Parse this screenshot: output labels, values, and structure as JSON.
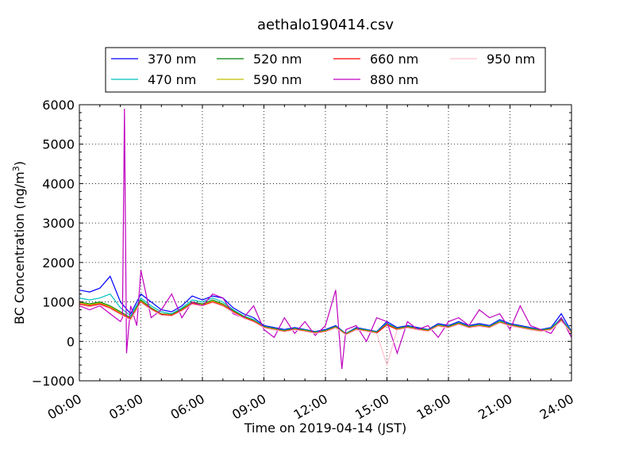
{
  "chart_data": {
    "type": "line",
    "title": "aethalo190414.csv",
    "xlabel": "Time on 2019-04-14 (JST)",
    "ylabel_main": "BC Concentration (ng/m",
    "ylabel_sup": "3",
    "ylabel_close": ")",
    "xlim_hours": [
      0,
      24
    ],
    "ylim": [
      -1000,
      6000
    ],
    "x_ticks": [
      0,
      3,
      6,
      9,
      12,
      15,
      18,
      21,
      24
    ],
    "x_tick_labels": [
      "00:00",
      "03:00",
      "06:00",
      "09:00",
      "12:00",
      "15:00",
      "18:00",
      "21:00",
      "24:00"
    ],
    "y_ticks": [
      -1000,
      0,
      1000,
      2000,
      3000,
      4000,
      5000,
      6000
    ],
    "y_tick_labels": [
      "−1000",
      "0",
      "1000",
      "2000",
      "3000",
      "4000",
      "5000",
      "6000"
    ],
    "grid": true,
    "legend_position": "top-center, above plot",
    "series": [
      {
        "name": "370 nm",
        "color": "#0000ff",
        "x": [
          0,
          0.5,
          1,
          1.5,
          2,
          2.5,
          3,
          3.5,
          4,
          4.5,
          5,
          5.5,
          6,
          6.5,
          7,
          7.5,
          8,
          8.5,
          9,
          9.5,
          10,
          10.5,
          11,
          11.5,
          12,
          12.5,
          13,
          13.5,
          14,
          14.5,
          15,
          15.5,
          16,
          16.5,
          17,
          17.5,
          18,
          18.5,
          19,
          19.5,
          20,
          20.5,
          21,
          21.5,
          22,
          22.5,
          23,
          23.5,
          24
        ],
        "y": [
          1300,
          1250,
          1350,
          1650,
          1000,
          700,
          1200,
          1000,
          800,
          750,
          900,
          1150,
          1050,
          1150,
          1100,
          850,
          700,
          600,
          400,
          350,
          300,
          350,
          300,
          250,
          300,
          400,
          200,
          350,
          300,
          250,
          500,
          350,
          400,
          350,
          300,
          450,
          400,
          500,
          400,
          450,
          400,
          550,
          450,
          400,
          350,
          300,
          350,
          700,
          250
        ]
      },
      {
        "name": "470 nm",
        "color": "#00bfbf",
        "x": [
          0,
          0.5,
          1,
          1.5,
          2,
          2.5,
          3,
          3.5,
          4,
          4.5,
          5,
          5.5,
          6,
          6.5,
          7,
          7.5,
          8,
          8.5,
          9,
          9.5,
          10,
          10.5,
          11,
          11.5,
          12,
          12.5,
          13,
          13.5,
          14,
          14.5,
          15,
          15.5,
          16,
          16.5,
          17,
          17.5,
          18,
          18.5,
          19,
          19.5,
          20,
          20.5,
          21,
          21.5,
          22,
          22.5,
          23,
          23.5,
          24
        ],
        "y": [
          1100,
          1050,
          1100,
          1200,
          850,
          650,
          1100,
          900,
          750,
          700,
          850,
          1050,
          1000,
          1100,
          1000,
          800,
          650,
          550,
          380,
          330,
          280,
          330,
          290,
          240,
          280,
          380,
          200,
          330,
          290,
          240,
          460,
          330,
          380,
          330,
          290,
          420,
          380,
          470,
          380,
          420,
          380,
          520,
          430,
          380,
          330,
          290,
          330,
          600,
          240
        ]
      },
      {
        "name": "520 nm",
        "color": "#008000",
        "x": [
          0,
          0.5,
          1,
          1.5,
          2,
          2.5,
          3,
          3.5,
          4,
          4.5,
          5,
          5.5,
          6,
          6.5,
          7,
          7.5,
          8,
          8.5,
          9,
          9.5,
          10,
          10.5,
          11,
          11.5,
          12,
          12.5,
          13,
          13.5,
          14,
          14.5,
          15,
          15.5,
          16,
          16.5,
          17,
          17.5,
          18,
          18.5,
          19,
          19.5,
          20,
          20.5,
          21,
          21.5,
          22,
          22.5,
          23,
          23.5,
          24
        ],
        "y": [
          1000,
          950,
          1000,
          900,
          750,
          600,
          1050,
          850,
          700,
          680,
          820,
          1000,
          950,
          1050,
          950,
          780,
          630,
          530,
          370,
          320,
          270,
          320,
          280,
          230,
          270,
          370,
          190,
          320,
          280,
          230,
          440,
          320,
          370,
          320,
          280,
          410,
          370,
          460,
          370,
          410,
          370,
          500,
          420,
          370,
          320,
          280,
          320,
          550,
          230
        ]
      },
      {
        "name": "590 nm",
        "color": "#bfbf00",
        "x": [
          0,
          0.5,
          1,
          1.5,
          2,
          2.5,
          3,
          3.5,
          4,
          4.5,
          5,
          5.5,
          6,
          6.5,
          7,
          7.5,
          8,
          8.5,
          9,
          9.5,
          10,
          10.5,
          11,
          11.5,
          12,
          12.5,
          13,
          13.5,
          14,
          14.5,
          15,
          15.5,
          16,
          16.5,
          17,
          17.5,
          18,
          18.5,
          19,
          19.5,
          20,
          20.5,
          21,
          21.5,
          22,
          22.5,
          23,
          23.5,
          24
        ],
        "y": [
          980,
          930,
          970,
          880,
          720,
          580,
          1020,
          830,
          690,
          670,
          800,
          980,
          930,
          1020,
          930,
          760,
          620,
          520,
          360,
          310,
          260,
          310,
          270,
          220,
          260,
          360,
          180,
          310,
          270,
          220,
          430,
          310,
          360,
          310,
          270,
          400,
          360,
          450,
          360,
          400,
          360,
          490,
          410,
          360,
          310,
          270,
          310,
          530,
          220
        ]
      },
      {
        "name": "660 nm",
        "color": "#ff0000",
        "x": [
          0,
          0.5,
          1,
          1.5,
          2,
          2.5,
          3,
          3.5,
          4,
          4.5,
          5,
          5.5,
          6,
          6.5,
          7,
          7.5,
          8,
          8.5,
          9,
          9.5,
          10,
          10.5,
          11,
          11.5,
          12,
          12.5,
          13,
          13.5,
          14,
          14.5,
          15,
          15.5,
          16,
          16.5,
          17,
          17.5,
          18,
          18.5,
          19,
          19.5,
          20,
          20.5,
          21,
          21.5,
          22,
          22.5,
          23,
          23.5,
          24
        ],
        "y": [
          950,
          900,
          950,
          850,
          700,
          560,
          1000,
          820,
          680,
          660,
          790,
          960,
          910,
          1000,
          910,
          750,
          610,
          510,
          350,
          300,
          250,
          300,
          260,
          210,
          250,
          350,
          170,
          300,
          260,
          210,
          420,
          300,
          350,
          300,
          260,
          390,
          350,
          440,
          350,
          390,
          350,
          480,
          400,
          350,
          300,
          260,
          300,
          520,
          210
        ]
      },
      {
        "name": "880 nm",
        "color": "#bf00bf",
        "x": [
          0,
          0.5,
          1,
          1.5,
          2,
          2.1,
          2.2,
          2.3,
          2.5,
          2.8,
          3,
          3.5,
          4,
          4.5,
          5,
          5.5,
          6,
          6.5,
          7,
          7.5,
          8,
          8.5,
          9,
          9.5,
          10,
          10.5,
          11,
          11.5,
          12,
          12.5,
          12.8,
          13,
          13.5,
          14,
          14.5,
          15,
          15.5,
          16,
          16.5,
          17,
          17.5,
          18,
          18.5,
          19,
          19.5,
          20,
          20.5,
          21,
          21.5,
          22,
          22.5,
          23,
          23.5,
          24
        ],
        "y": [
          900,
          800,
          900,
          700,
          500,
          600,
          5900,
          -300,
          900,
          400,
          1800,
          600,
          800,
          1200,
          600,
          1000,
          900,
          1200,
          1100,
          700,
          600,
          900,
          300,
          100,
          600,
          200,
          500,
          150,
          400,
          1300,
          -700,
          300,
          400,
          0,
          600,
          500,
          -300,
          500,
          300,
          400,
          100,
          500,
          600,
          400,
          800,
          600,
          700,
          300,
          900,
          400,
          300,
          200,
          600,
          100
        ]
      },
      {
        "name": "950 nm",
        "color": "#ffc0cb",
        "x": [
          0,
          0.5,
          1,
          1.5,
          2,
          2.5,
          3,
          3.5,
          4,
          4.5,
          5,
          5.5,
          6,
          6.5,
          7,
          7.5,
          8,
          8.5,
          9,
          9.5,
          10,
          10.5,
          11,
          11.5,
          12,
          12.5,
          13,
          13.5,
          14,
          14.5,
          15,
          15.5,
          16,
          16.5,
          17,
          17.5,
          18,
          18.5,
          19,
          19.5,
          20,
          20.5,
          21,
          21.5,
          22,
          22.5,
          23,
          23.5,
          24
        ],
        "y": [
          920,
          870,
          920,
          820,
          680,
          540,
          980,
          800,
          660,
          640,
          770,
          940,
          890,
          980,
          890,
          730,
          590,
          490,
          340,
          290,
          240,
          290,
          250,
          200,
          240,
          340,
          160,
          290,
          250,
          200,
          -600,
          290,
          340,
          290,
          250,
          380,
          340,
          430,
          340,
          380,
          340,
          470,
          390,
          340,
          290,
          250,
          290,
          510,
          200
        ]
      }
    ]
  }
}
